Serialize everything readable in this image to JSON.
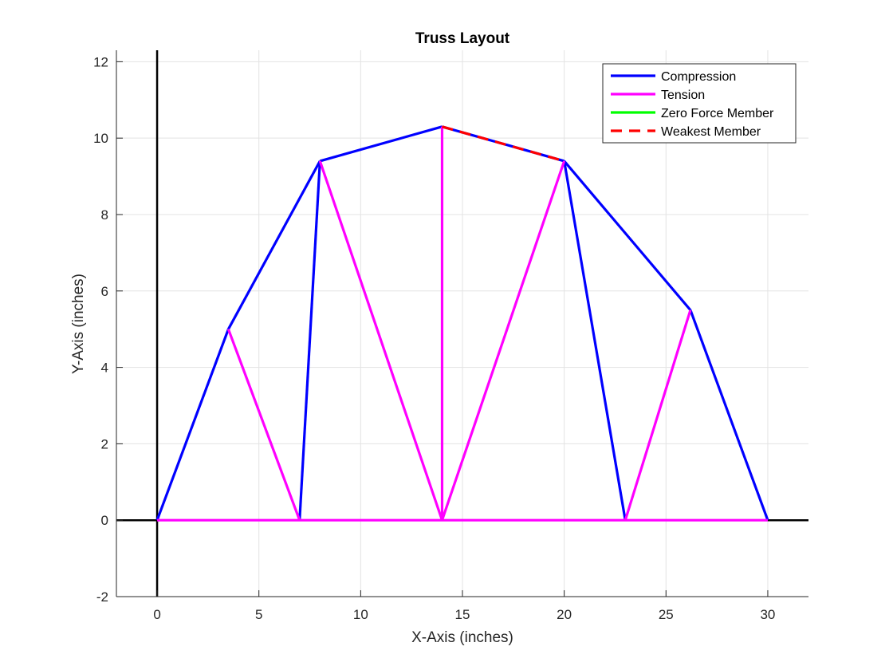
{
  "chart_data": {
    "type": "line",
    "title": "Truss Layout",
    "xlabel": "X-Axis (inches)",
    "ylabel": "Y-Axis (inches)",
    "xlim": [
      -2,
      32
    ],
    "ylim": [
      -2,
      12.3
    ],
    "xticks": [
      0,
      5,
      10,
      15,
      20,
      25,
      30
    ],
    "yticks": [
      -2,
      0,
      2,
      4,
      6,
      8,
      10,
      12
    ],
    "grid": true,
    "legend_position": "top-right",
    "reference_lines": [
      {
        "name": "x-axis-line",
        "x": [
          -2,
          32
        ],
        "y": [
          0,
          0
        ],
        "color": "#000000"
      },
      {
        "name": "y-axis-line",
        "x": [
          0,
          0
        ],
        "y": [
          -2,
          12.3
        ],
        "color": "#000000"
      }
    ],
    "series": [
      {
        "name": "Compression",
        "color": "#0000ff",
        "style": "solid",
        "segments": [
          [
            [
              0,
              0
            ],
            [
              3.5,
              5
            ]
          ],
          [
            [
              3.5,
              5
            ],
            [
              8,
              9.4
            ]
          ],
          [
            [
              8,
              9.4
            ],
            [
              14,
              10.3
            ]
          ],
          [
            [
              14,
              10.3
            ],
            [
              20,
              9.4
            ]
          ],
          [
            [
              20,
              9.4
            ],
            [
              26.2,
              5.5
            ]
          ],
          [
            [
              26.2,
              5.5
            ],
            [
              30,
              0
            ]
          ],
          [
            [
              7,
              0
            ],
            [
              8,
              9.4
            ]
          ],
          [
            [
              20,
              9.4
            ],
            [
              23,
              0
            ]
          ]
        ]
      },
      {
        "name": "Tension",
        "color": "#ff00ff",
        "style": "solid",
        "segments": [
          [
            [
              0,
              0
            ],
            [
              30,
              0
            ]
          ],
          [
            [
              3.5,
              5
            ],
            [
              7,
              0
            ]
          ],
          [
            [
              8,
              9.4
            ],
            [
              14,
              0
            ]
          ],
          [
            [
              14,
              0
            ],
            [
              14,
              10.3
            ]
          ],
          [
            [
              14,
              0
            ],
            [
              20,
              9.4
            ]
          ],
          [
            [
              23,
              0
            ],
            [
              26.2,
              5.5
            ]
          ]
        ]
      },
      {
        "name": "Zero Force Member",
        "color": "#00ff00",
        "style": "solid",
        "segments": []
      },
      {
        "name": "Weakest Member",
        "color": "#ff0000",
        "style": "dashed",
        "segments": [
          [
            [
              14,
              10.3
            ],
            [
              20,
              9.4
            ]
          ]
        ]
      }
    ]
  }
}
